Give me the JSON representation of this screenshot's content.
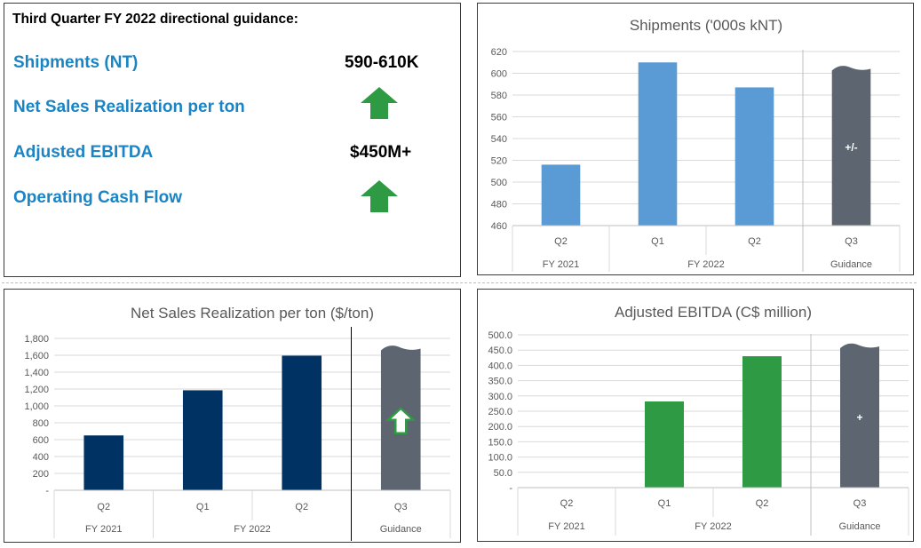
{
  "guidance": {
    "title": "Third Quarter FY 2022 directional guidance:",
    "rows": [
      {
        "label": "Shipments (NT)",
        "value": "590-610K",
        "icon": "up-arrow-icon"
      },
      {
        "label": "Net Sales Realization per ton",
        "value": "",
        "icon": "up-arrow-icon"
      },
      {
        "label": "Adjusted EBITDA",
        "value": "$450M+",
        "icon": ""
      },
      {
        "label": "Operating Cash Flow",
        "value": "",
        "icon": "up-arrow-icon"
      }
    ],
    "arrow_color": "#2e9a44",
    "label_color": "#1a84c4"
  },
  "chart_data": [
    {
      "type": "bar",
      "title": "Shipments ('000s kNT)",
      "categories": [
        "Q2",
        "Q1",
        "Q2",
        "Q3"
      ],
      "groups": [
        "FY 2021",
        "FY 2022",
        "Guidance"
      ],
      "values": [
        516,
        610,
        587,
        605
      ],
      "bar_colors": [
        "#5b9bd5",
        "#5b9bd5",
        "#5b9bd5",
        "#5d6670"
      ],
      "bar_labels": [
        "",
        "",
        "",
        "+/-"
      ],
      "ylim": [
        460,
        620
      ],
      "yticks": [
        "460",
        "480",
        "500",
        "520",
        "540",
        "560",
        "580",
        "600",
        "620"
      ]
    },
    {
      "type": "bar",
      "title": "Net Sales Realization per ton ($/ton)",
      "categories": [
        "Q2",
        "Q1",
        "Q2",
        "Q3"
      ],
      "groups": [
        "FY 2021",
        "FY 2022",
        "Guidance"
      ],
      "values": [
        650,
        1185,
        1595,
        1690
      ],
      "bar_colors": [
        "#003263",
        "#003263",
        "#003263",
        "#5d6670"
      ],
      "bar_labels": [
        "",
        "",
        "",
        ""
      ],
      "ylim": [
        0,
        1800
      ],
      "yticks": [
        "-",
        "200",
        "400",
        "600",
        "800",
        "1,000",
        "1,200",
        "1,400",
        "1,600",
        "1,800"
      ]
    },
    {
      "type": "bar",
      "title": "Adjusted EBITDA (C$ million)",
      "categories": [
        "Q2",
        "Q1",
        "Q2",
        "Q3"
      ],
      "groups": [
        "FY 2021",
        "FY 2022",
        "Guidance"
      ],
      "values": [
        0,
        282,
        430,
        465
      ],
      "bar_colors": [
        "#2e9a44",
        "#2e9a44",
        "#2e9a44",
        "#5d6670"
      ],
      "bar_labels": [
        "",
        "",
        "",
        "+"
      ],
      "ylim": [
        0,
        500
      ],
      "yticks": [
        "-",
        "50.0",
        "100.0",
        "150.0",
        "200.0",
        "250.0",
        "300.0",
        "350.0",
        "400.0",
        "450.0",
        "500.0"
      ]
    }
  ]
}
